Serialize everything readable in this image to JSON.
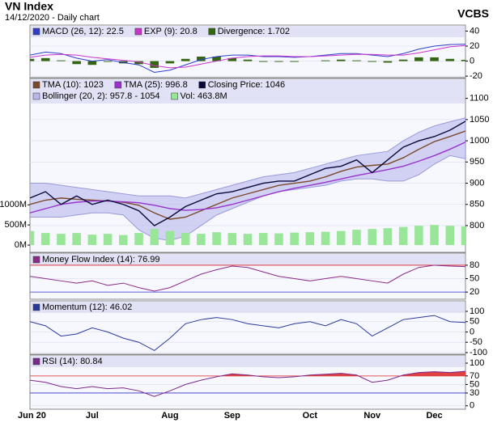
{
  "header": {
    "title": "VN Index",
    "subtitle": "14/12/2020 - Daily chart",
    "source": "VCBS"
  },
  "chart_data": [
    {
      "type": "line",
      "ylim": [
        -22,
        48
      ],
      "yticks": [
        40,
        20,
        0,
        -20
      ],
      "series": [
        {
          "name": "MACD (26, 12): 22.5",
          "color": "#2f3fc8",
          "type": "line",
          "values": [
            8,
            12,
            10,
            4,
            0,
            2,
            -2,
            -5,
            -15,
            -12,
            -5,
            2,
            6,
            8,
            8,
            6,
            6,
            5,
            6,
            8,
            10,
            10,
            8,
            6,
            10,
            16,
            20,
            22,
            22.5
          ]
        },
        {
          "name": "EXP (9): 20.8",
          "color": "#cc33cc",
          "type": "line",
          "values": [
            5,
            8,
            9,
            8,
            5,
            3,
            1,
            -1,
            -6,
            -9,
            -8,
            -4,
            0,
            4,
            6,
            7,
            7,
            6,
            6,
            7,
            8,
            9,
            9,
            8,
            8,
            11,
            15,
            19,
            20.8
          ]
        },
        {
          "name": "Divergence: 1.702",
          "color": "#336611",
          "type": "bar",
          "values": [
            3,
            4,
            1,
            -4,
            -5,
            -1,
            -3,
            -4,
            -9,
            -3,
            3,
            6,
            6,
            4,
            2,
            -1,
            -1,
            -1,
            0,
            1,
            2,
            1,
            -1,
            -2,
            2,
            5,
            5,
            3,
            1.702
          ]
        }
      ]
    },
    {
      "type": "line",
      "ylim": [
        737,
        1147
      ],
      "yticks": [
        800,
        850,
        900,
        950,
        1000,
        1050,
        1100
      ],
      "y2lim": [
        -180,
        4140
      ],
      "y2ticks": [
        {
          "value": 0,
          "label": "0M"
        },
        {
          "value": 500,
          "label": "500M"
        },
        {
          "value": 1000,
          "label": "1000M"
        }
      ],
      "series": [
        {
          "name": "TMA (10): 1023",
          "color": "#7a4a2a",
          "type": "line",
          "values": [
            850,
            860,
            865,
            862,
            860,
            858,
            855,
            848,
            830,
            815,
            820,
            835,
            850,
            865,
            875,
            885,
            895,
            900,
            905,
            915,
            928,
            938,
            942,
            945,
            960,
            980,
            998,
            1010,
            1023
          ]
        },
        {
          "name": "TMA (25): 996.8",
          "color": "#9933cc",
          "type": "line",
          "values": [
            830,
            840,
            850,
            855,
            858,
            858,
            856,
            854,
            848,
            840,
            836,
            838,
            842,
            850,
            860,
            870,
            880,
            888,
            895,
            902,
            910,
            918,
            925,
            932,
            940,
            952,
            965,
            980,
            996.8
          ]
        },
        {
          "name": "Closing Price: 1046",
          "color": "#0a0a3a",
          "type": "line",
          "values": [
            865,
            880,
            850,
            870,
            850,
            860,
            850,
            835,
            800,
            820,
            845,
            860,
            875,
            880,
            890,
            900,
            905,
            905,
            920,
            935,
            940,
            955,
            925,
            955,
            985,
            1000,
            1010,
            1025,
            1046
          ]
        },
        {
          "name": "Bollinger (20, 2): 957.8 - 1054",
          "color": "#b8b8ec",
          "type": "band",
          "upper": [
            900,
            900,
            895,
            890,
            885,
            880,
            875,
            870,
            870,
            870,
            865,
            875,
            885,
            895,
            905,
            915,
            920,
            925,
            935,
            945,
            955,
            965,
            970,
            975,
            1000,
            1020,
            1035,
            1045,
            1054
          ],
          "lower": [
            820,
            820,
            820,
            825,
            830,
            830,
            825,
            790,
            770,
            765,
            775,
            800,
            825,
            840,
            855,
            870,
            880,
            885,
            890,
            895,
            905,
            910,
            910,
            905,
            905,
            920,
            945,
            965,
            957.8
          ]
        },
        {
          "name": "Vol: 463.8M",
          "color": "#99e699",
          "type": "bar",
          "axis": "y2",
          "values": [
            350,
            300,
            280,
            300,
            260,
            280,
            250,
            300,
            400,
            350,
            300,
            280,
            320,
            300,
            280,
            300,
            290,
            310,
            320,
            330,
            350,
            380,
            400,
            420,
            450,
            480,
            500,
            480,
            463.8
          ]
        }
      ]
    },
    {
      "type": "line",
      "ylim": [
        4,
        107
      ],
      "yticks": [
        80,
        50,
        20
      ],
      "overbought": 80,
      "oversold": 20,
      "series": [
        {
          "name": "Money Flow Index (14): 76.99",
          "color": "#8a2a8a",
          "type": "line",
          "values": [
            55,
            50,
            45,
            40,
            45,
            35,
            40,
            30,
            22,
            30,
            45,
            60,
            70,
            78,
            75,
            65,
            55,
            50,
            45,
            50,
            55,
            50,
            45,
            40,
            60,
            75,
            80,
            78,
            76.99
          ]
        }
      ]
    },
    {
      "type": "line",
      "ylim": [
        -108,
        151
      ],
      "yticks": [
        100,
        50,
        0,
        -50,
        -100
      ],
      "series": [
        {
          "name": "Momentum (12): 46.02",
          "color": "#2a3a9a",
          "type": "line",
          "values": [
            50,
            30,
            -20,
            -10,
            20,
            0,
            -30,
            -50,
            -90,
            -30,
            40,
            60,
            70,
            60,
            40,
            30,
            20,
            40,
            50,
            30,
            60,
            40,
            -20,
            20,
            60,
            70,
            80,
            50,
            46.02
          ]
        }
      ]
    },
    {
      "type": "line",
      "ylim": [
        -8,
        119
      ],
      "yticks": [
        100,
        70,
        50,
        30,
        0
      ],
      "overbought": 70,
      "oversold": 30,
      "categories": [
        "Jun 20",
        null,
        null,
        null,
        "Jul",
        null,
        null,
        null,
        null,
        "Aug",
        null,
        null,
        null,
        "Sep",
        null,
        null,
        null,
        null,
        "Oct",
        null,
        null,
        null,
        "Nov",
        null,
        null,
        null,
        "Dec",
        null,
        null
      ],
      "series": [
        {
          "name": "RSI (14): 80.84",
          "color": "#7a2a8a",
          "type": "line",
          "values": [
            60,
            55,
            45,
            40,
            45,
            40,
            42,
            35,
            22,
            35,
            50,
            60,
            68,
            75,
            72,
            68,
            66,
            68,
            72,
            74,
            76,
            72,
            55,
            60,
            72,
            78,
            80,
            78,
            80.84
          ]
        }
      ]
    }
  ]
}
